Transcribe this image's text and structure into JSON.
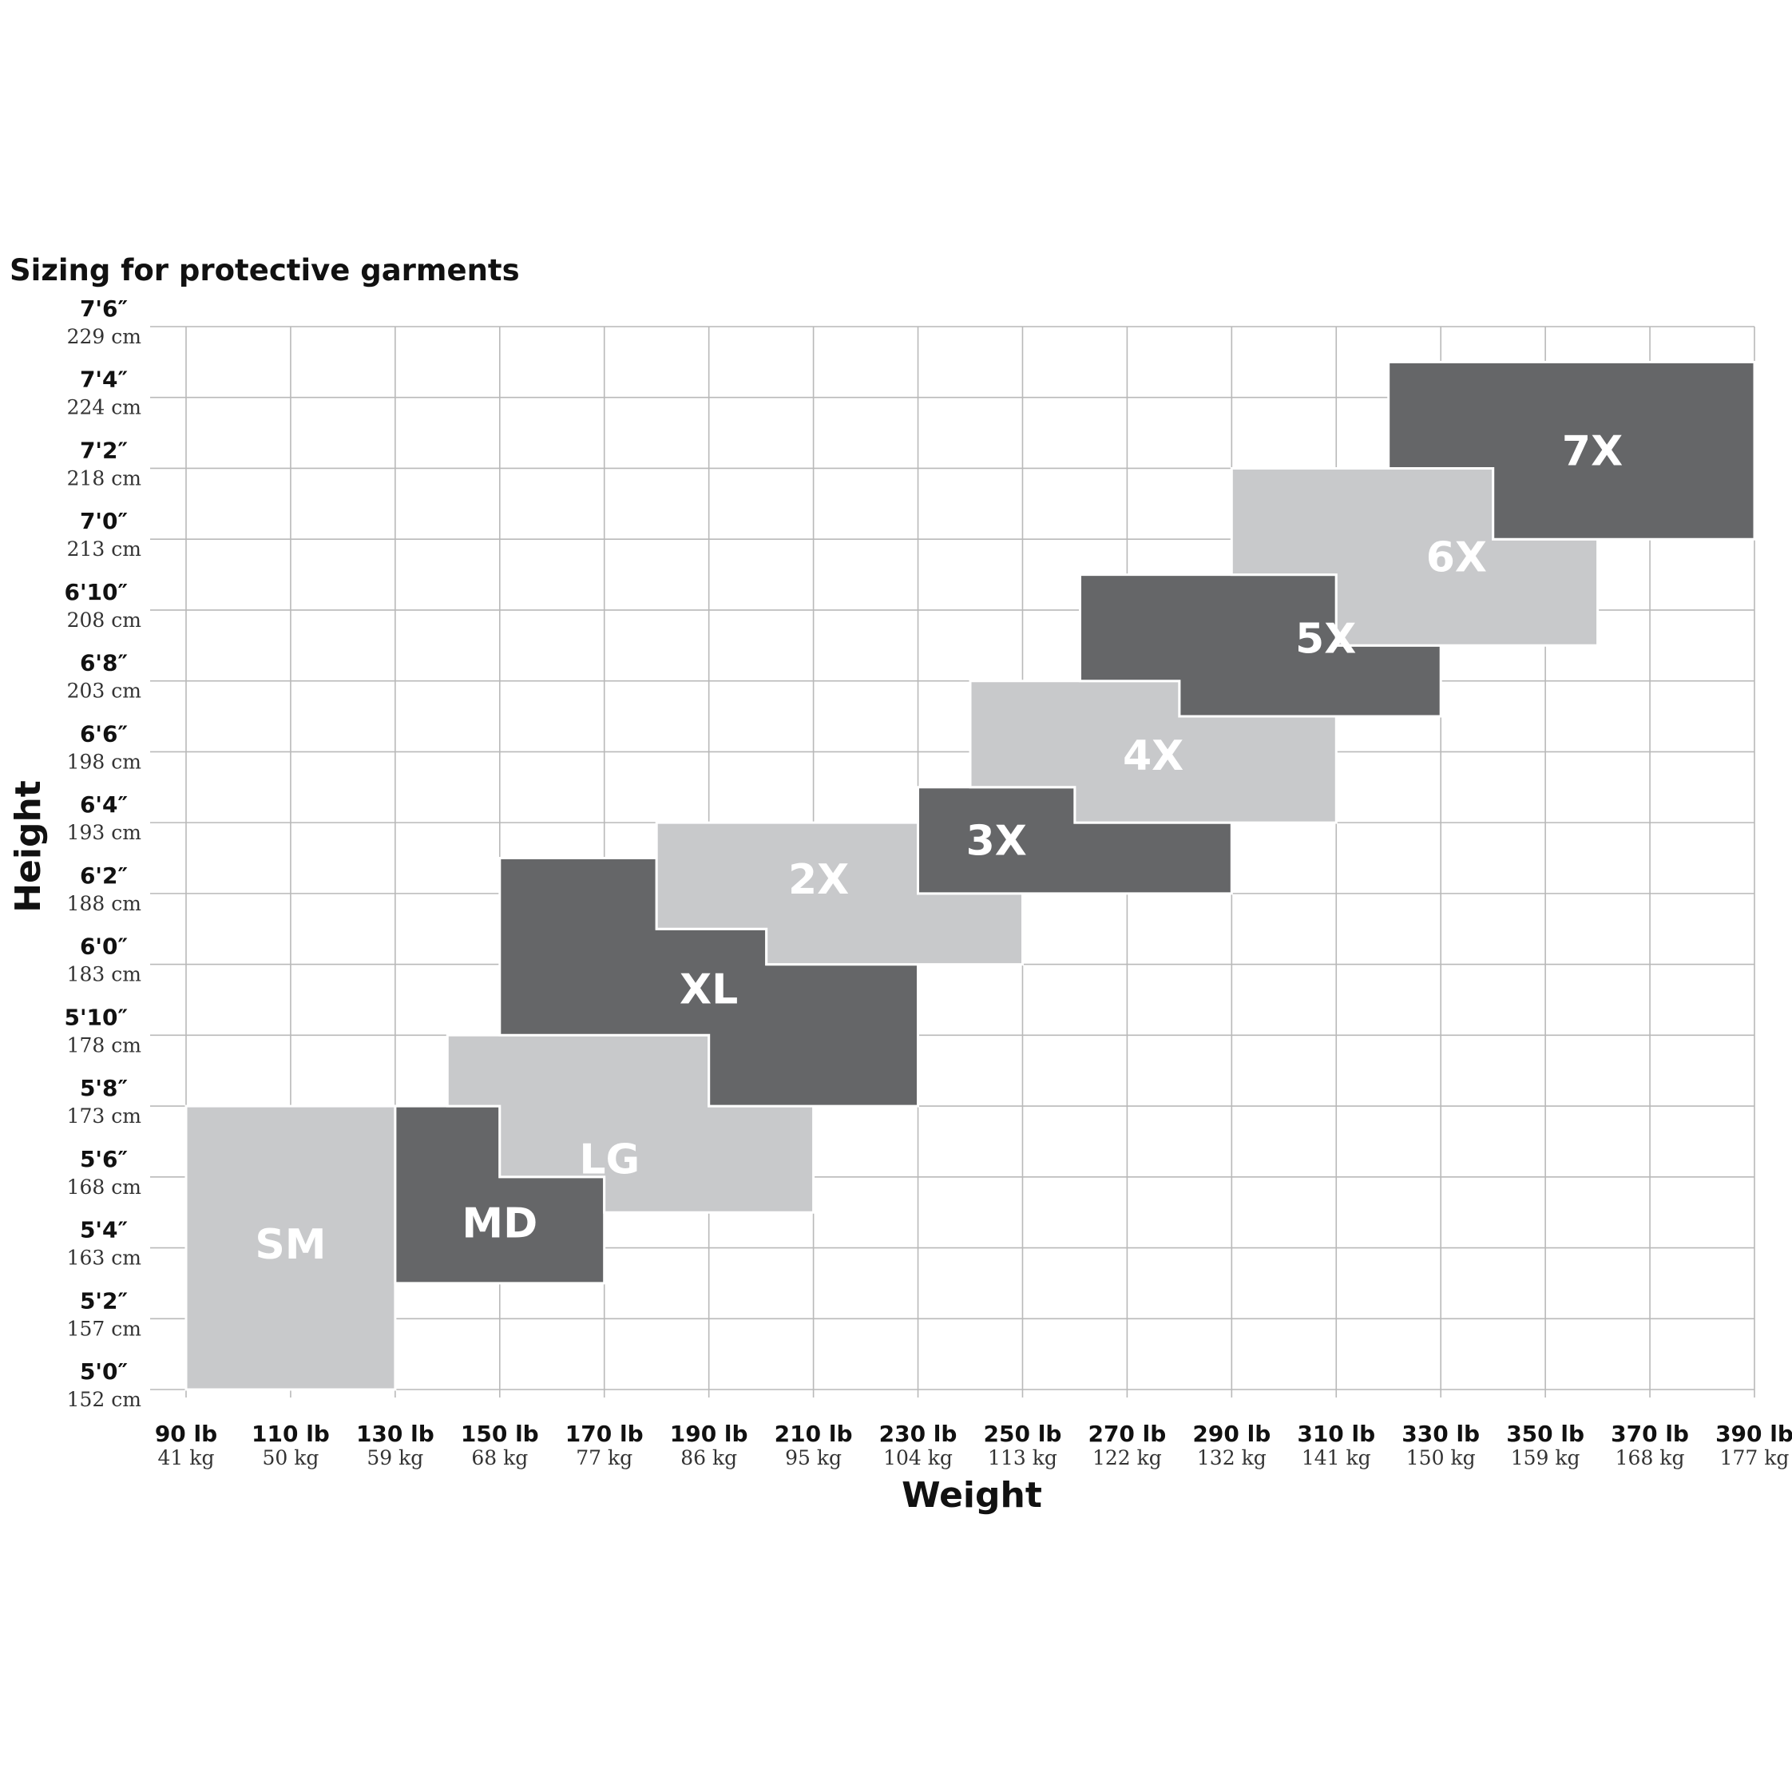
{
  "chart_data": {
    "type": "area",
    "title": "Sizing for protective garments",
    "xlabel": "Weight",
    "ylabel": "Height",
    "x_unit": "lb",
    "y_unit": "in",
    "xlim": [
      90,
      390
    ],
    "ylim": [
      60,
      90
    ],
    "grid": true,
    "x_ticks": [
      {
        "value": 90,
        "label": "90 lb",
        "sublabel": "41 kg"
      },
      {
        "value": 110,
        "label": "110 lb",
        "sublabel": "50 kg"
      },
      {
        "value": 130,
        "label": "130 lb",
        "sublabel": "59 kg"
      },
      {
        "value": 150,
        "label": "150 lb",
        "sublabel": "68 kg"
      },
      {
        "value": 170,
        "label": "170 lb",
        "sublabel": "77 kg"
      },
      {
        "value": 190,
        "label": "190 lb",
        "sublabel": "86 kg"
      },
      {
        "value": 210,
        "label": "210 lb",
        "sublabel": "95 kg"
      },
      {
        "value": 230,
        "label": "230 lb",
        "sublabel": "104 kg"
      },
      {
        "value": 250,
        "label": "250 lb",
        "sublabel": "113 kg"
      },
      {
        "value": 270,
        "label": "270 lb",
        "sublabel": "122 kg"
      },
      {
        "value": 290,
        "label": "290 lb",
        "sublabel": "132 kg"
      },
      {
        "value": 310,
        "label": "310 lb",
        "sublabel": "141 kg"
      },
      {
        "value": 330,
        "label": "330 lb",
        "sublabel": "150 kg"
      },
      {
        "value": 350,
        "label": "350 lb",
        "sublabel": "159 kg"
      },
      {
        "value": 370,
        "label": "370 lb",
        "sublabel": "168 kg"
      },
      {
        "value": 390,
        "label": "390 lb",
        "sublabel": "177 kg"
      }
    ],
    "y_ticks": [
      {
        "value": 60,
        "label": "5'0″",
        "sublabel": "152 cm"
      },
      {
        "value": 62,
        "label": "5'2″",
        "sublabel": "157 cm"
      },
      {
        "value": 64,
        "label": "5'4″",
        "sublabel": "163 cm"
      },
      {
        "value": 66,
        "label": "5'6″",
        "sublabel": "168 cm"
      },
      {
        "value": 68,
        "label": "5'8″",
        "sublabel": "173 cm"
      },
      {
        "value": 70,
        "label": "5'10″",
        "sublabel": "178 cm"
      },
      {
        "value": 72,
        "label": "6'0″",
        "sublabel": "183 cm"
      },
      {
        "value": 74,
        "label": "6'2″",
        "sublabel": "188 cm"
      },
      {
        "value": 76,
        "label": "6'4″",
        "sublabel": "193 cm"
      },
      {
        "value": 78,
        "label": "6'6″",
        "sublabel": "198 cm"
      },
      {
        "value": 80,
        "label": "6'8″",
        "sublabel": "203 cm"
      },
      {
        "value": 82,
        "label": "6'10″",
        "sublabel": "208 cm"
      },
      {
        "value": 84,
        "label": "7'0″",
        "sublabel": "213 cm"
      },
      {
        "value": 86,
        "label": "7'2″",
        "sublabel": "218 cm"
      },
      {
        "value": 88,
        "label": "7'4″",
        "sublabel": "224 cm"
      },
      {
        "value": 90,
        "label": "7'6″",
        "sublabel": "229 cm"
      }
    ],
    "regions": [
      {
        "name": "SM",
        "shade": "light",
        "color": "#c8c9cb",
        "polygon": [
          [
            90,
            60
          ],
          [
            130,
            60
          ],
          [
            130,
            68
          ],
          [
            90,
            68
          ]
        ],
        "label_at": [
          110,
          64.1
        ]
      },
      {
        "name": "MD",
        "shade": "dark",
        "color": "#656668",
        "polygon": [
          [
            130,
            63
          ],
          [
            170,
            63
          ],
          [
            170,
            66
          ],
          [
            150,
            66
          ],
          [
            150,
            68
          ],
          [
            130,
            68
          ]
        ],
        "label_at": [
          150,
          64.7
        ]
      },
      {
        "name": "LG",
        "shade": "light",
        "color": "#c8c9cb",
        "polygon": [
          [
            170,
            65
          ],
          [
            210,
            65
          ],
          [
            210,
            68
          ],
          [
            190,
            68
          ],
          [
            190,
            70
          ],
          [
            140,
            70
          ],
          [
            140,
            68
          ],
          [
            150,
            68
          ],
          [
            150,
            66
          ],
          [
            170,
            66
          ]
        ],
        "label_at": [
          171,
          66.5
        ]
      },
      {
        "name": "XL",
        "shade": "dark",
        "color": "#656668",
        "polygon": [
          [
            190,
            68
          ],
          [
            230,
            68
          ],
          [
            230,
            72
          ],
          [
            201,
            72
          ],
          [
            201,
            73
          ],
          [
            180,
            73
          ],
          [
            180,
            75
          ],
          [
            150,
            75
          ],
          [
            150,
            70
          ],
          [
            190,
            70
          ]
        ],
        "label_at": [
          190,
          71.3
        ]
      },
      {
        "name": "2X",
        "shade": "light",
        "color": "#c8c9cb",
        "polygon": [
          [
            201,
            72
          ],
          [
            250,
            72
          ],
          [
            250,
            74
          ],
          [
            230,
            74
          ],
          [
            230,
            76
          ],
          [
            180,
            76
          ],
          [
            180,
            73
          ],
          [
            201,
            73
          ]
        ],
        "label_at": [
          211,
          74.4
        ]
      },
      {
        "name": "3X",
        "shade": "dark",
        "color": "#656668",
        "polygon": [
          [
            230,
            74
          ],
          [
            290,
            74
          ],
          [
            290,
            76
          ],
          [
            260,
            76
          ],
          [
            260,
            77
          ],
          [
            230,
            77
          ]
        ],
        "label_at": [
          245,
          75.5
        ]
      },
      {
        "name": "4X",
        "shade": "light",
        "color": "#c8c9cb",
        "polygon": [
          [
            260,
            76
          ],
          [
            310,
            76
          ],
          [
            310,
            79
          ],
          [
            280,
            79
          ],
          [
            280,
            80
          ],
          [
            240,
            80
          ],
          [
            240,
            77
          ],
          [
            260,
            77
          ]
        ],
        "label_at": [
          275,
          77.9
        ]
      },
      {
        "name": "5X",
        "shade": "dark",
        "color": "#656668",
        "polygon": [
          [
            280,
            79
          ],
          [
            330,
            79
          ],
          [
            330,
            81
          ],
          [
            310,
            81
          ],
          [
            310,
            83
          ],
          [
            261,
            83
          ],
          [
            261,
            80
          ],
          [
            280,
            80
          ]
        ],
        "label_at": [
          308,
          81.2
        ]
      },
      {
        "name": "6X",
        "shade": "light",
        "color": "#c8c9cb",
        "polygon": [
          [
            310,
            81
          ],
          [
            360,
            81
          ],
          [
            360,
            84
          ],
          [
            340,
            84
          ],
          [
            340,
            86
          ],
          [
            290,
            86
          ],
          [
            290,
            83
          ],
          [
            310,
            83
          ]
        ],
        "label_at": [
          333,
          83.5
        ]
      },
      {
        "name": "7X",
        "shade": "dark",
        "color": "#656668",
        "polygon": [
          [
            340,
            84
          ],
          [
            390,
            84
          ],
          [
            390,
            89
          ],
          [
            320,
            89
          ],
          [
            320,
            86
          ],
          [
            340,
            86
          ]
        ],
        "label_at": [
          359,
          86.5
        ]
      }
    ],
    "colors": {
      "light": "#c8c9cb",
      "dark": "#656668",
      "grid": "#b9b9b9",
      "region_label": "#ffffff"
    }
  }
}
